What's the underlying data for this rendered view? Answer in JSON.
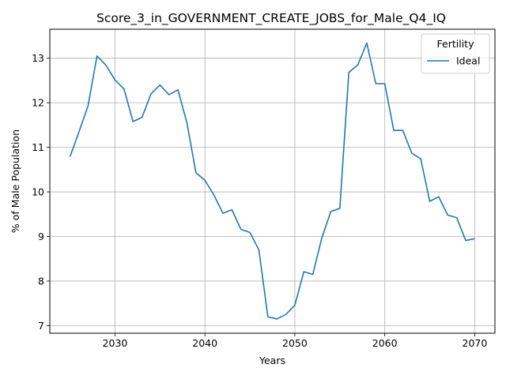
{
  "chart_data": {
    "type": "line",
    "title": "Score_3_in_GOVERNMENT_CREATE_JOBS_for_Male_Q4_IQ",
    "xlabel": "Years",
    "ylabel": "% of Male Population",
    "xlim": [
      2022.75,
      2072.25
    ],
    "ylim": [
      6.83,
      13.65
    ],
    "xticks": [
      2030,
      2040,
      2050,
      2060,
      2070
    ],
    "yticks": [
      7,
      8,
      9,
      10,
      11,
      12,
      13
    ],
    "grid": true,
    "legend": {
      "title": "Fertility",
      "placement": "top-right"
    },
    "series": [
      {
        "name": "Ideal",
        "color": "#1f77b4",
        "x": [
          2025,
          2026,
          2027,
          2028,
          2029,
          2030,
          2031,
          2032,
          2033,
          2034,
          2035,
          2036,
          2037,
          2038,
          2039,
          2040,
          2041,
          2042,
          2043,
          2044,
          2045,
          2046,
          2047,
          2048,
          2049,
          2050,
          2051,
          2052,
          2053,
          2054,
          2055,
          2056,
          2057,
          2058,
          2059,
          2060,
          2061,
          2062,
          2063,
          2064,
          2065,
          2066,
          2067,
          2068,
          2069,
          2070
        ],
        "y": [
          10.79,
          11.35,
          11.93,
          13.05,
          12.84,
          12.51,
          12.31,
          11.58,
          11.67,
          12.2,
          12.4,
          12.18,
          12.29,
          11.55,
          10.43,
          10.26,
          9.93,
          9.52,
          9.6,
          9.16,
          9.09,
          8.7,
          7.2,
          7.15,
          7.25,
          7.46,
          8.21,
          8.15,
          8.97,
          9.56,
          9.63,
          12.68,
          12.85,
          13.34,
          12.43,
          12.43,
          11.38,
          11.38,
          10.87,
          10.74,
          9.79,
          9.89,
          9.48,
          9.42,
          8.91,
          8.95
        ]
      }
    ]
  }
}
